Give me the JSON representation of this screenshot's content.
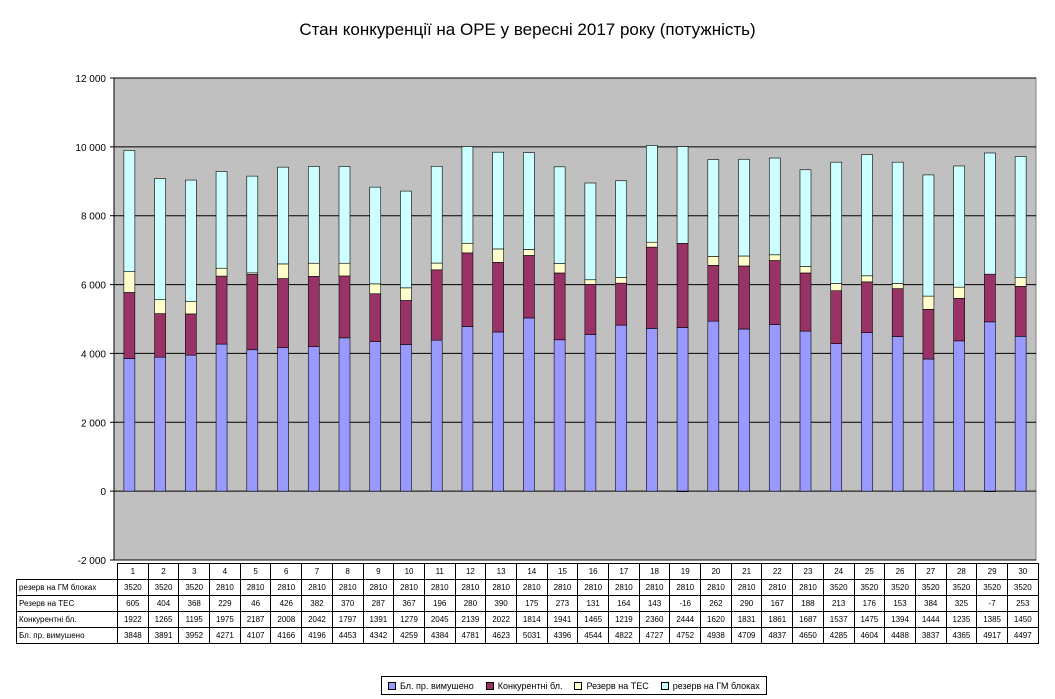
{
  "chart_data": {
    "type": "bar",
    "stacked": true,
    "title": "Стан конкуренції на ОРЕ  у вересні 2017 року (потужність)",
    "categories": [
      "1",
      "2",
      "3",
      "4",
      "5",
      "6",
      "7",
      "8",
      "9",
      "10",
      "11",
      "12",
      "13",
      "14",
      "15",
      "16",
      "17",
      "18",
      "19",
      "20",
      "21",
      "22",
      "23",
      "24",
      "25",
      "26",
      "27",
      "28",
      "29",
      "30"
    ],
    "ylim": [
      -2000,
      12000
    ],
    "yticks": [
      -2000,
      0,
      2000,
      4000,
      6000,
      8000,
      10000,
      12000
    ],
    "ytick_labels": [
      "-2 000",
      "0",
      "2 000",
      "4 000",
      "6 000",
      "8 000",
      "10 000",
      "12 000"
    ],
    "grid": true,
    "legend_position": "bottom",
    "plot_background": "#c0c0c0",
    "series": [
      {
        "name": "Бл. пр. вимушено",
        "color": "#9999ff",
        "values": [
          3848,
          3891,
          3952,
          4271,
          4107,
          4166,
          4196,
          4453,
          4342,
          4259,
          4384,
          4781,
          4623,
          5031,
          4396,
          4544,
          4822,
          4727,
          4752,
          4938,
          4709,
          4837,
          4650,
          4285,
          4604,
          4488,
          3837,
          4365,
          4917,
          4497
        ]
      },
      {
        "name": "Конкурентні бл.",
        "color": "#993366",
        "values": [
          1922,
          1265,
          1195,
          1975,
          2187,
          2008,
          2042,
          1797,
          1391,
          1279,
          2045,
          2139,
          2022,
          1814,
          1941,
          1465,
          1219,
          2360,
          2444,
          1620,
          1831,
          1861,
          1687,
          1537,
          1475,
          1394,
          1444,
          1235,
          1385,
          1450
        ]
      },
      {
        "name": "Резерв на ТЕС",
        "color": "#ffffcc",
        "values": [
          605,
          404,
          368,
          229,
          46,
          426,
          382,
          370,
          287,
          367,
          196,
          280,
          390,
          175,
          273,
          131,
          164,
          143,
          -16,
          262,
          290,
          167,
          188,
          213,
          176,
          153,
          384,
          325,
          -7,
          253
        ]
      },
      {
        "name": "резерв на ГМ блоках",
        "color": "#ccffff",
        "values": [
          3520,
          3520,
          3520,
          2810,
          2810,
          2810,
          2810,
          2810,
          2810,
          2810,
          2810,
          2810,
          2810,
          2810,
          2810,
          2810,
          2810,
          2810,
          2810,
          2810,
          2810,
          2810,
          2810,
          3520,
          3520,
          3520,
          3520,
          3520,
          3520,
          3520
        ]
      }
    ],
    "table_rows": [
      {
        "label": "резерв на ГМ блоках",
        "series_index": 3
      },
      {
        "label": "Резерв на ТЕС",
        "series_index": 2
      },
      {
        "label": "Конкурентні бл.",
        "series_index": 1
      },
      {
        "label": "Бл. пр. вимушено",
        "series_index": 0
      }
    ]
  }
}
